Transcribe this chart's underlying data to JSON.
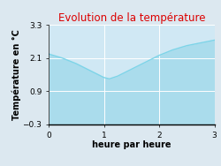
{
  "title": "Evolution de la température",
  "xlabel": "heure par heure",
  "ylabel": "Température en °C",
  "x": [
    0,
    0.25,
    0.5,
    0.75,
    1.0,
    1.1,
    1.25,
    1.5,
    1.75,
    2.0,
    2.25,
    2.5,
    2.75,
    3.0
  ],
  "y": [
    2.25,
    2.1,
    1.9,
    1.65,
    1.4,
    1.35,
    1.45,
    1.7,
    1.95,
    2.2,
    2.4,
    2.55,
    2.65,
    2.75
  ],
  "ylim": [
    -0.3,
    3.3
  ],
  "xlim": [
    0,
    3
  ],
  "yticks": [
    -0.3,
    0.9,
    2.1,
    3.3
  ],
  "xticks": [
    0,
    1,
    2,
    3
  ],
  "line_color": "#7dd4e8",
  "fill_color": "#aadcec",
  "bg_color": "#dce8f0",
  "plot_bg_color": "#d0e8f4",
  "title_color": "#dd0000",
  "title_fontsize": 8.5,
  "label_fontsize": 7,
  "tick_fontsize": 6.5
}
